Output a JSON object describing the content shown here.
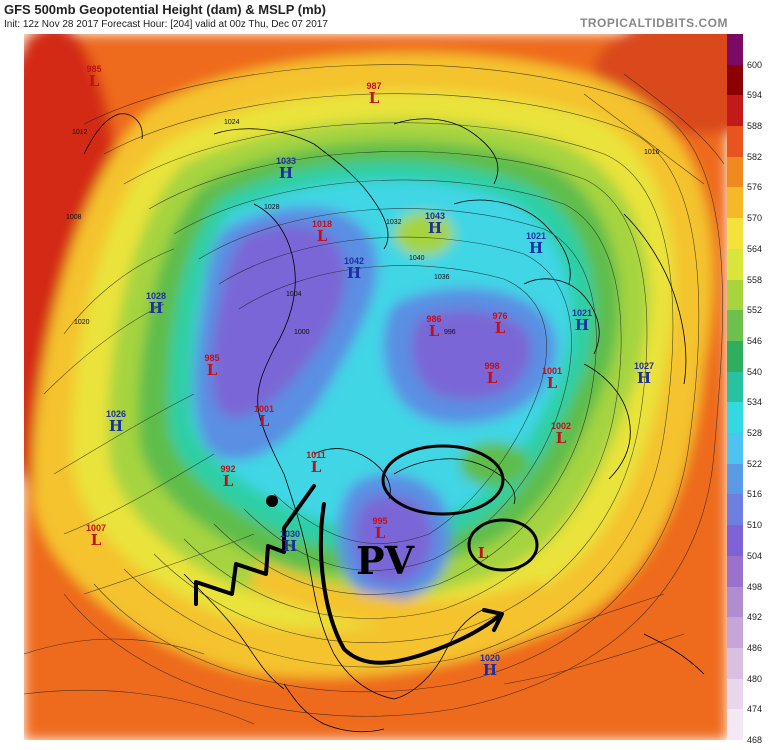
{
  "header": {
    "title": "GFS 500mb Geopotential Height (dam) & MSLP (mb)",
    "subtitle": "Init: 12z Nov 28 2017   Forecast Hour: [204]   valid at 00z Thu, Dec 07 2017",
    "brand": "TROPICALTIDBITS.COM"
  },
  "colorbar": {
    "levels": [
      "600",
      "594",
      "588",
      "582",
      "576",
      "570",
      "564",
      "558",
      "552",
      "546",
      "540",
      "534",
      "528",
      "522",
      "516",
      "510",
      "504",
      "498",
      "492",
      "486",
      "480",
      "474",
      "468"
    ],
    "colors": [
      "#7a0a64",
      "#8b0000",
      "#c21a1a",
      "#e8541e",
      "#f08a1e",
      "#f5b928",
      "#f2e23b",
      "#d8e63c",
      "#a7d43f",
      "#6cc04b",
      "#2fae5f",
      "#28c2a0",
      "#33d8e0",
      "#4ec2f0",
      "#5b9be6",
      "#6f7fe0",
      "#7e63d6",
      "#9a72cc",
      "#b08cd0",
      "#c6a6d8",
      "#d9c0e2",
      "#e8d6ec",
      "#f3e8f4"
    ]
  },
  "systems": [
    {
      "type": "L",
      "value": "985"
    },
    {
      "type": "L",
      "value": "987"
    },
    {
      "type": "H",
      "value": "1033"
    },
    {
      "type": "L",
      "value": "1018"
    },
    {
      "type": "H",
      "value": "1043"
    },
    {
      "type": "H",
      "value": "1042"
    },
    {
      "type": "H",
      "value": "1021"
    },
    {
      "type": "H",
      "value": "1028"
    },
    {
      "type": "L",
      "value": "986"
    },
    {
      "type": "L",
      "value": "976"
    },
    {
      "type": "H",
      "value": "1021"
    },
    {
      "type": "L",
      "value": "985"
    },
    {
      "type": "L",
      "value": "998"
    },
    {
      "type": "L",
      "value": "1001"
    },
    {
      "type": "H",
      "value": "1027"
    },
    {
      "type": "L",
      "value": "1001"
    },
    {
      "type": "H",
      "value": "1026"
    },
    {
      "type": "L",
      "value": "1002"
    },
    {
      "type": "L",
      "value": "1011"
    },
    {
      "type": "L",
      "value": "992"
    },
    {
      "type": "L",
      "value": "1007"
    },
    {
      "type": "H",
      "value": "1030"
    },
    {
      "type": "L",
      "value": "995"
    },
    {
      "type": "L",
      "value": ""
    },
    {
      "type": "H",
      "value": "1020"
    }
  ],
  "isobar_labels": [
    "1008",
    "1012",
    "1016",
    "1020",
    "1024",
    "1028",
    "1032",
    "1036",
    "1040",
    "1004",
    "1000",
    "996"
  ],
  "annotation": {
    "text": "PV"
  }
}
